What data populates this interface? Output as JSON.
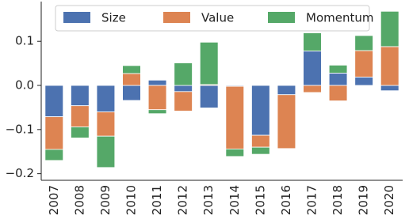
{
  "chart_data": {
    "type": "bar",
    "stacked": true,
    "categories": [
      "2007",
      "2008",
      "2009",
      "2010",
      "2011",
      "2012",
      "2013",
      "2014",
      "2015",
      "2016",
      "2017",
      "2018",
      "2019",
      "2020"
    ],
    "series": [
      {
        "name": "Size",
        "color": "#4c72b0",
        "values": [
          -0.071,
          -0.046,
          -0.06,
          -0.034,
          0.012,
          -0.014,
          -0.051,
          -0.002,
          -0.113,
          -0.021,
          0.078,
          0.028,
          0.019,
          -0.012
        ]
      },
      {
        "name": "Value",
        "color": "#dd8452",
        "values": [
          -0.074,
          -0.048,
          -0.055,
          0.027,
          -0.055,
          -0.044,
          0.002,
          -0.142,
          -0.027,
          -0.122,
          -0.016,
          -0.035,
          0.06,
          0.088
        ]
      },
      {
        "name": "Momentum",
        "color": "#55a868",
        "values": [
          -0.025,
          -0.025,
          -0.071,
          0.018,
          -0.009,
          0.051,
          0.096,
          -0.017,
          -0.016,
          0,
          0.041,
          0.018,
          0.034,
          0.08
        ]
      }
    ],
    "ylim": [
      -0.215,
      0.19
    ],
    "yticks": [
      {
        "value": -0.2,
        "label": "−0.2"
      },
      {
        "value": -0.1,
        "label": "−0.1"
      },
      {
        "value": 0,
        "label": "0.0"
      },
      0.1
    ],
    "grid": false,
    "legend": "upper center"
  }
}
